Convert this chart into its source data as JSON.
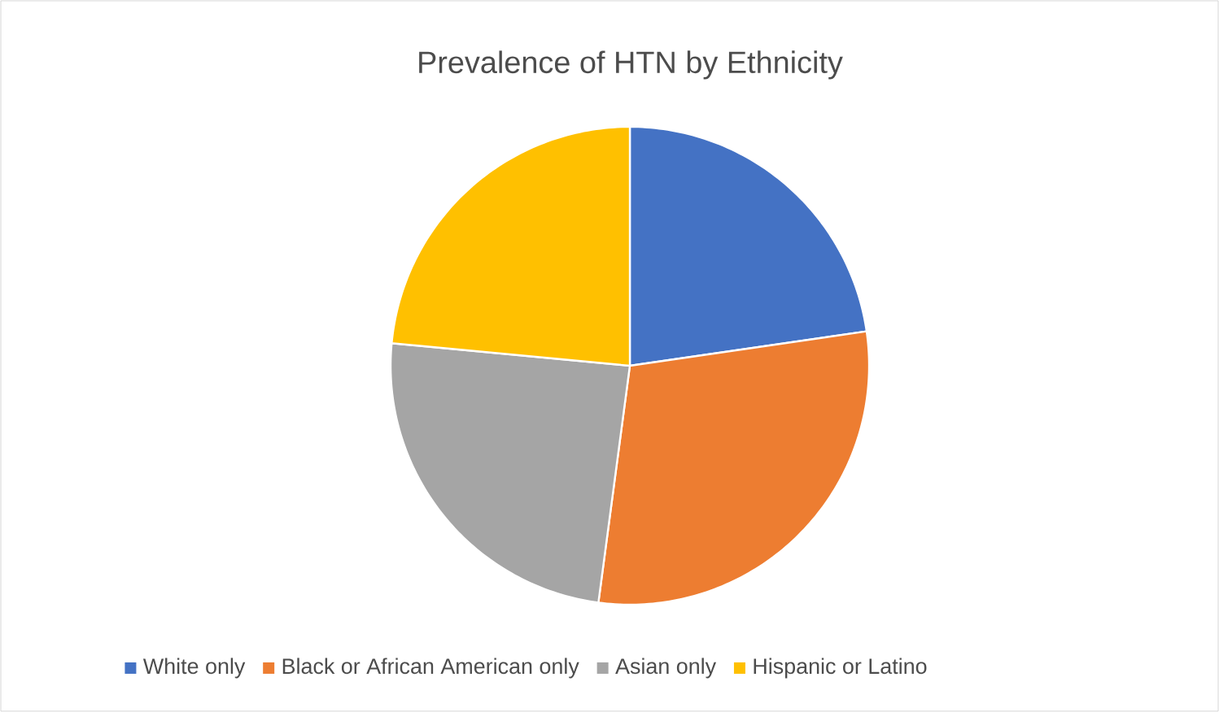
{
  "chart_data": {
    "type": "pie",
    "title": "Prevalence of HTN by Ethnicity",
    "categories": [
      "White only",
      "Black or African American only",
      "Asian only",
      "Hispanic or Latino"
    ],
    "values": [
      22.7,
      29.4,
      24.4,
      23.5
    ],
    "colors": [
      "#4472c4",
      "#ed7d31",
      "#a5a5a5",
      "#ffc000"
    ],
    "legend": "bottom"
  }
}
